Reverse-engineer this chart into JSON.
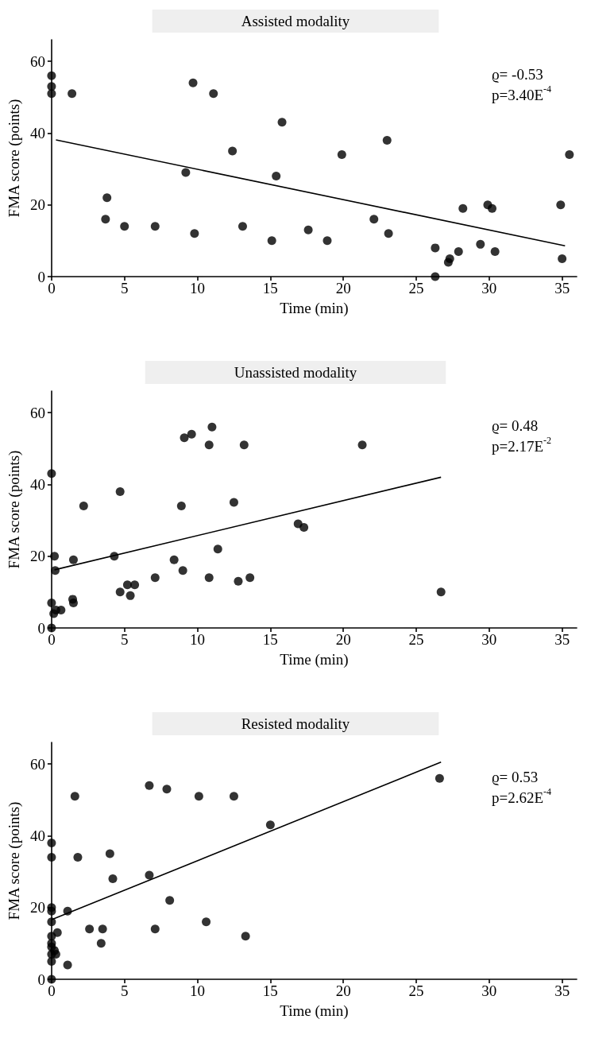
{
  "chart_data": [
    {
      "type": "scatter",
      "title": "Assisted modality",
      "xlabel": "Time (min)",
      "ylabel": "FMA score (points)",
      "xlim": [
        0,
        36
      ],
      "xticks": [
        0,
        5,
        10,
        15,
        20,
        25,
        30,
        35
      ],
      "ylim": [
        0,
        66
      ],
      "yticks": [
        0,
        20,
        40,
        60
      ],
      "grid": false,
      "annotations": [
        "ϱ= -0.53",
        "p=3.40E$^{-4}$"
      ],
      "series": [
        {
          "marker": "circle",
          "color": "#000000",
          "x": [
            0,
            0,
            0,
            1.4,
            9.7,
            11.1,
            15.8,
            12.4,
            23.0,
            19.9,
            9.2,
            15.4,
            3.8,
            3.7,
            5.0,
            7.1,
            9.8,
            13.1,
            15.1,
            17.6,
            18.9,
            22.1,
            23.1,
            26.3,
            26.3,
            27.2,
            27.3,
            27.9,
            28.2,
            29.4,
            29.9,
            30.2,
            30.4,
            34.9,
            35.0,
            35.5
          ],
          "values": [
            56,
            53,
            51,
            51,
            54,
            51,
            43,
            35,
            38,
            34,
            29,
            28,
            22,
            16,
            14,
            14,
            12,
            14,
            10,
            13,
            10,
            16,
            12,
            8,
            0,
            4,
            5,
            7,
            19,
            9,
            20,
            19,
            7,
            20,
            5,
            34
          ]
        },
        {
          "type": "line",
          "marker": "none",
          "color": "#000000",
          "x": [
            0.3,
            35.2
          ],
          "values": [
            38.1,
            8.6
          ]
        }
      ]
    },
    {
      "type": "scatter",
      "title": "Unassisted modality",
      "xlabel": "Time (min)",
      "ylabel": "FMA score (points)",
      "xlim": [
        0,
        36
      ],
      "xticks": [
        0,
        5,
        10,
        15,
        20,
        25,
        30,
        35
      ],
      "ylim": [
        0,
        66
      ],
      "yticks": [
        0,
        20,
        40,
        60
      ],
      "grid": false,
      "annotations": [
        "ϱ= 0.48",
        "p=2.17E$^{-2}$"
      ],
      "series": [
        {
          "marker": "circle",
          "color": "#000000",
          "x": [
            0,
            0.2,
            0.25,
            0,
            0.15,
            0.3,
            0.65,
            0,
            1.5,
            1.45,
            1.5,
            2.2,
            4.3,
            4.7,
            4.7,
            5.2,
            5.4,
            5.7,
            7.1,
            8.4,
            8.9,
            9.1,
            9.0,
            9.6,
            10.8,
            11.0,
            10.8,
            11.4,
            12.5,
            12.8,
            13.2,
            13.6,
            16.9,
            17.3,
            21.3,
            26.7
          ],
          "values": [
            43,
            20,
            16,
            7,
            4,
            5,
            5,
            0,
            19,
            8,
            7,
            34,
            20,
            38,
            10,
            12,
            9,
            12,
            14,
            19,
            34,
            53,
            16,
            54,
            51,
            56,
            14,
            22,
            35,
            13,
            51,
            14,
            29,
            28,
            51,
            10
          ]
        },
        {
          "type": "line",
          "marker": "none",
          "color": "#000000",
          "x": [
            0.2,
            26.7
          ],
          "values": [
            16.2,
            42.0
          ]
        }
      ]
    },
    {
      "type": "scatter",
      "title": "Resisted modality",
      "xlabel": "Time (min)",
      "ylabel": "FMA score (points)",
      "xlim": [
        0,
        36
      ],
      "xticks": [
        0,
        5,
        10,
        15,
        20,
        25,
        30,
        35
      ],
      "ylim": [
        0,
        66
      ],
      "yticks": [
        0,
        20,
        40,
        60
      ],
      "grid": false,
      "annotations": [
        "ϱ= 0.53",
        "p=2.62E$^{-4}$"
      ],
      "series": [
        {
          "marker": "circle",
          "color": "#000000",
          "x": [
            0,
            0,
            0,
            0,
            0,
            0,
            0,
            0,
            0,
            0,
            0,
            0.2,
            0.3,
            0.4,
            1.1,
            1.1,
            1.6,
            1.8,
            2.6,
            3.4,
            3.5,
            4.0,
            4.2,
            6.7,
            6.7,
            7.1,
            7.9,
            8.1,
            10.1,
            10.6,
            12.5,
            13.3,
            15.0,
            26.6
          ],
          "values": [
            38,
            34,
            20,
            19,
            16,
            12,
            10,
            9,
            7,
            5,
            0,
            8,
            7,
            13,
            19,
            4,
            51,
            34,
            14,
            10,
            14,
            35,
            28,
            29,
            54,
            14,
            53,
            22,
            51,
            16,
            51,
            12,
            43,
            56
          ]
        },
        {
          "type": "line",
          "marker": "none",
          "color": "#000000",
          "x": [
            0,
            26.7
          ],
          "values": [
            16.6,
            60.5
          ]
        }
      ]
    }
  ]
}
